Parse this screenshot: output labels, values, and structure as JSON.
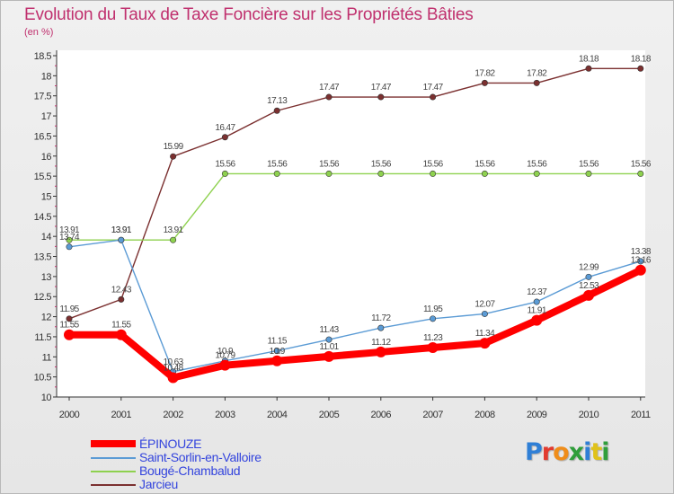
{
  "header": {
    "title": "Evolution du Taux de Taxe Foncière sur les Propriétés Bâties",
    "unit": "(en %)"
  },
  "logo": {
    "text": "Proxiti",
    "letter_colors": [
      "#2f7fd6",
      "#e23a2e",
      "#ef8d1a",
      "#2f9e3a",
      "#2f7fd6",
      "#e0c21a",
      "#2f9e3a"
    ]
  },
  "chart_data": {
    "type": "line",
    "x": [
      "2000",
      "2001",
      "2002",
      "2003",
      "2004",
      "2005",
      "2006",
      "2007",
      "2008",
      "2009",
      "2010",
      "2011"
    ],
    "ylim": [
      10,
      18.5
    ],
    "yticks": [
      "10",
      "10.5",
      "11",
      "11.5",
      "12",
      "12.5",
      "13",
      "13.5",
      "14",
      "14.5",
      "15",
      "15.5",
      "16",
      "16.5",
      "17",
      "17.5",
      "18",
      "18.5"
    ],
    "grid": false,
    "legend": "bottom-left",
    "series": [
      {
        "name": "ÉPINOUZE",
        "color": "#ff0000",
        "values": [
          11.55,
          11.55,
          10.48,
          10.79,
          10.9,
          11.01,
          11.12,
          11.23,
          11.34,
          11.91,
          12.53,
          13.16
        ],
        "labels": [
          "11.55",
          "11.55",
          "10.48",
          "10.79",
          "10.9",
          "11.01",
          "11.12",
          "11.23",
          "11.34",
          "11.91",
          "12.53",
          "13.16"
        ]
      },
      {
        "name": "Saint-Sorlin-en-Valloire",
        "color": "#5b9bd5",
        "values": [
          13.74,
          13.91,
          10.63,
          10.9,
          11.15,
          11.43,
          11.72,
          11.95,
          12.07,
          12.37,
          12.99,
          13.38
        ],
        "labels": [
          "13.74",
          "13.91",
          "10.63",
          "10.9",
          "11.15",
          "11.43",
          "11.72",
          "11.95",
          "12.07",
          "12.37",
          "12.99",
          "13.38"
        ]
      },
      {
        "name": "Bougé-Chambalud",
        "color": "#8ed14f",
        "values": [
          13.91,
          13.91,
          13.91,
          15.56,
          15.56,
          15.56,
          15.56,
          15.56,
          15.56,
          15.56,
          15.56,
          15.56
        ],
        "labels": [
          "13.91",
          "13.91",
          "13.91",
          "15.56",
          "15.56",
          "15.56",
          "15.56",
          "15.56",
          "15.56",
          "15.56",
          "15.56",
          "15.56"
        ]
      },
      {
        "name": "Jarcieu",
        "color": "#7b3030",
        "values": [
          11.95,
          12.43,
          15.99,
          16.47,
          17.13,
          17.47,
          17.47,
          17.47,
          17.82,
          17.82,
          18.18,
          18.18
        ],
        "labels": [
          "11.95",
          "12.43",
          "15.99",
          "16.47",
          "17.13",
          "17.47",
          "17.47",
          "17.47",
          "17.82",
          "17.82",
          "18.18",
          "18.18"
        ]
      }
    ]
  }
}
